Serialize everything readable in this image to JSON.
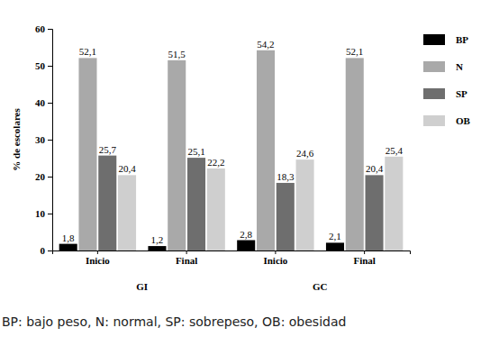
{
  "chart_data": {
    "type": "bar",
    "y_label": "% de escolares",
    "categories": [
      "Inicio",
      "Final",
      "Inicio",
      "Final"
    ],
    "x_groups": [
      "GI",
      "GI",
      "GC",
      "GC"
    ],
    "series": [
      {
        "name": "BP",
        "color": "#000000",
        "values": [
          1.8,
          1.2,
          2.8,
          2.1
        ],
        "value_labels": [
          "1,8",
          "1,2",
          "2,8",
          "2,1"
        ]
      },
      {
        "name": "N",
        "color": "#a9a9a9",
        "values": [
          52.1,
          51.5,
          54.2,
          52.1
        ],
        "value_labels": [
          "52,1",
          "51,5",
          "54,2",
          "52,1"
        ]
      },
      {
        "name": "SP",
        "color": "#6e6e6e",
        "values": [
          25.7,
          25.1,
          18.3,
          20.4
        ],
        "value_labels": [
          "25,7",
          "25,1",
          "18,3",
          "20,4"
        ]
      },
      {
        "name": "OB",
        "color": "#cfcfcf",
        "values": [
          20.4,
          22.2,
          24.6,
          25.4
        ],
        "value_labels": [
          "20,4",
          "22,2",
          "24,6",
          "25,4"
        ]
      }
    ],
    "ylim": [
      0,
      60
    ],
    "yticks": [
      0,
      10,
      20,
      30,
      40,
      50,
      60
    ],
    "data_labels": true,
    "legend": "right",
    "caption": "BP: bajo peso, N: normal, SP: sobrepeso, OB: obesidad"
  }
}
